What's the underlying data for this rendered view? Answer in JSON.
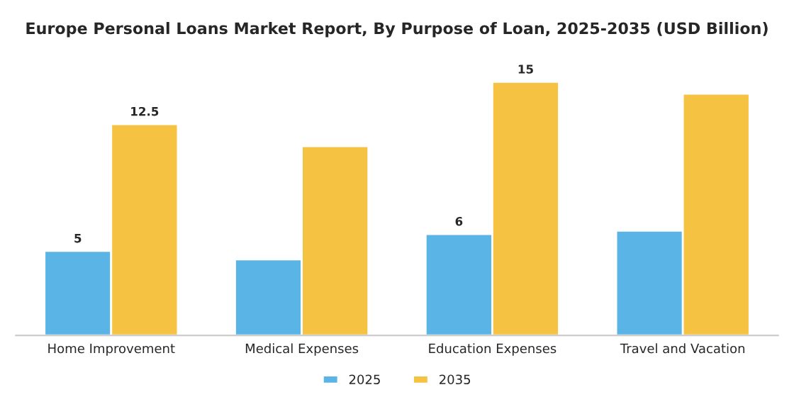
{
  "chart_data": {
    "type": "bar",
    "title": "Europe Personal Loans Market Report, By Purpose of Loan, 2025-2035 (USD Billion)",
    "categories": [
      "Home Improvement",
      "Medical Expenses",
      "Education Expenses",
      "Travel and Vacation"
    ],
    "series": [
      {
        "name": "2025",
        "color": "#5ab4e5",
        "values": [
          5,
          4.5,
          6,
          6.2
        ],
        "value_labels": [
          "5",
          null,
          "6",
          null
        ]
      },
      {
        "name": "2035",
        "color": "#f5c242",
        "values": [
          12.5,
          11.2,
          15,
          14.3
        ],
        "value_labels": [
          "12.5",
          null,
          "15",
          null
        ]
      }
    ],
    "legend": "bottom",
    "grid": false
  }
}
